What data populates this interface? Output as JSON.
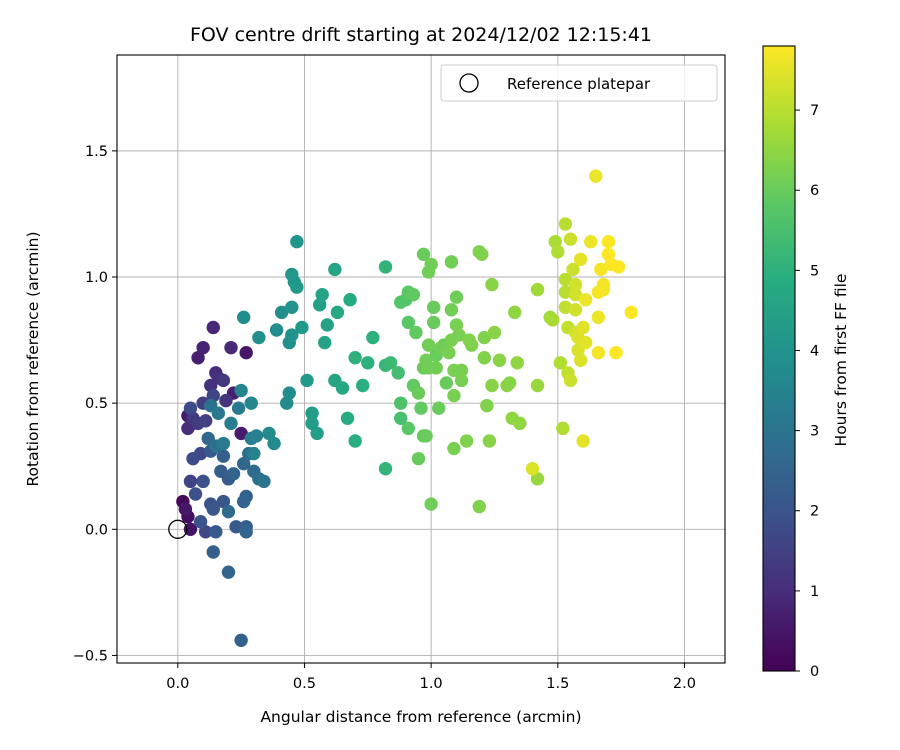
{
  "chart_data": {
    "type": "scatter",
    "title": "FOV centre drift starting at 2024/12/02 12:15:41",
    "xlabel": "Angular distance from reference (arcmin)",
    "ylabel": "Rotation from reference (arcmin)",
    "xlim": [
      -0.24,
      2.16
    ],
    "ylim": [
      -0.53,
      1.88
    ],
    "xticks": [
      0.0,
      0.5,
      1.0,
      1.5,
      2.0
    ],
    "xtick_labels": [
      "0.0",
      "0.5",
      "1.0",
      "1.5",
      "2.0"
    ],
    "yticks": [
      -0.5,
      0.0,
      0.5,
      1.0,
      1.5
    ],
    "ytick_labels": [
      "−0.5",
      "0.0",
      "0.5",
      "1.0",
      "1.5"
    ],
    "grid": true,
    "legend": {
      "position": "top-right",
      "entries": [
        "Reference platepar"
      ]
    },
    "reference_point": {
      "label": "Reference platepar",
      "x": 0.0,
      "y": 0.0,
      "marker": "open-circle"
    },
    "colorbar": {
      "label": "Hours from first FF file",
      "colormap": "viridis",
      "min": 0,
      "max": 7.8,
      "ticks": [
        0,
        1,
        2,
        3,
        4,
        5,
        6,
        7
      ],
      "tick_labels": [
        "0",
        "1",
        "2",
        "3",
        "4",
        "5",
        "6",
        "7"
      ]
    },
    "series": [
      {
        "points": [
          [
            0.02,
            0.11,
            0.2
          ],
          [
            0.04,
            0.05,
            0.3
          ],
          [
            0.05,
            0.0,
            0.4
          ],
          [
            0.03,
            0.08,
            0.5
          ],
          [
            0.06,
            0.42,
            0.5
          ],
          [
            0.04,
            0.45,
            0.6
          ],
          [
            0.08,
            0.68,
            0.7
          ],
          [
            0.1,
            0.72,
            0.8
          ],
          [
            0.14,
            0.8,
            0.9
          ],
          [
            0.25,
            0.38,
            0.6
          ],
          [
            0.27,
            0.7,
            0.5
          ],
          [
            0.21,
            0.72,
            0.9
          ],
          [
            0.15,
            0.62,
            1.0
          ],
          [
            0.16,
            0.6,
            1.1
          ],
          [
            0.13,
            0.57,
            1.1
          ],
          [
            0.19,
            0.51,
            1.2
          ],
          [
            0.22,
            0.54,
            0.7
          ],
          [
            0.04,
            0.4,
            1.0
          ],
          [
            0.06,
            0.44,
            1.3
          ],
          [
            0.08,
            0.42,
            1.4
          ],
          [
            0.11,
            0.43,
            1.5
          ],
          [
            0.1,
            0.5,
            1.5
          ],
          [
            0.14,
            0.53,
            1.6
          ],
          [
            0.18,
            0.59,
            1.3
          ],
          [
            0.05,
            0.48,
            1.8
          ],
          [
            0.09,
            0.3,
            1.7
          ],
          [
            0.06,
            0.28,
            1.8
          ],
          [
            0.05,
            0.19,
            1.6
          ],
          [
            0.1,
            0.19,
            1.9
          ],
          [
            0.07,
            0.14,
            1.9
          ],
          [
            0.13,
            0.1,
            2.0
          ],
          [
            0.09,
            0.03,
            2.0
          ],
          [
            0.14,
            0.08,
            2.1
          ],
          [
            0.18,
            0.11,
            2.1
          ],
          [
            0.11,
            -0.01,
            1.7
          ],
          [
            0.15,
            -0.01,
            2.2
          ],
          [
            0.14,
            -0.09,
            2.3
          ],
          [
            0.2,
            -0.17,
            2.5
          ],
          [
            0.25,
            -0.44,
            2.4
          ],
          [
            0.2,
            0.2,
            2.2
          ],
          [
            0.17,
            0.23,
            2.3
          ],
          [
            0.22,
            0.22,
            2.5
          ],
          [
            0.26,
            0.26,
            2.6
          ],
          [
            0.28,
            0.3,
            2.8
          ],
          [
            0.3,
            0.23,
            2.7
          ],
          [
            0.32,
            0.2,
            2.8
          ],
          [
            0.34,
            0.19,
            3.0
          ],
          [
            0.27,
            0.13,
            2.4
          ],
          [
            0.26,
            0.11,
            2.5
          ],
          [
            0.23,
            0.01,
            2.2
          ],
          [
            0.27,
            0.01,
            2.3
          ],
          [
            0.27,
            -0.01,
            2.5
          ],
          [
            0.2,
            0.07,
            2.7
          ],
          [
            0.18,
            0.29,
            2.4
          ],
          [
            0.13,
            0.31,
            2.2
          ],
          [
            0.12,
            0.36,
            2.6
          ],
          [
            0.15,
            0.33,
            2.9
          ],
          [
            0.18,
            0.34,
            3.2
          ],
          [
            0.13,
            0.49,
            2.9
          ],
          [
            0.16,
            0.46,
            3.1
          ],
          [
            0.21,
            0.42,
            3.3
          ],
          [
            0.29,
            0.36,
            3.3
          ],
          [
            0.31,
            0.37,
            3.4
          ],
          [
            0.3,
            0.3,
            3.4
          ],
          [
            0.24,
            0.48,
            3.2
          ],
          [
            0.25,
            0.55,
            3.5
          ],
          [
            0.29,
            0.5,
            3.6
          ],
          [
            0.36,
            0.38,
            3.7
          ],
          [
            0.38,
            0.34,
            3.7
          ],
          [
            0.26,
            0.84,
            3.8
          ],
          [
            0.32,
            0.76,
            3.9
          ],
          [
            0.39,
            0.79,
            3.8
          ],
          [
            0.41,
            0.86,
            3.9
          ],
          [
            0.44,
            0.74,
            3.9
          ],
          [
            0.45,
            0.77,
            4.0
          ],
          [
            0.43,
            0.5,
            3.7
          ],
          [
            0.44,
            0.54,
            3.8
          ],
          [
            0.45,
            0.88,
            4.0
          ],
          [
            0.45,
            1.01,
            4.1
          ],
          [
            0.46,
            0.98,
            4.1
          ],
          [
            0.47,
            0.96,
            4.2
          ],
          [
            0.47,
            1.14,
            4.1
          ],
          [
            0.49,
            0.8,
            4.2
          ],
          [
            0.51,
            0.59,
            4.2
          ],
          [
            0.53,
            0.46,
            4.3
          ],
          [
            0.53,
            0.42,
            4.3
          ],
          [
            0.55,
            0.38,
            4.4
          ],
          [
            0.56,
            0.89,
            4.4
          ],
          [
            0.57,
            0.93,
            4.5
          ],
          [
            0.58,
            0.74,
            4.5
          ],
          [
            0.59,
            0.81,
            4.5
          ],
          [
            0.62,
            1.03,
            4.6
          ],
          [
            0.62,
            0.59,
            4.6
          ],
          [
            0.63,
            0.86,
            4.7
          ],
          [
            0.65,
            0.56,
            4.7
          ],
          [
            0.67,
            0.44,
            4.8
          ],
          [
            0.68,
            0.91,
            4.8
          ],
          [
            0.7,
            0.35,
            4.9
          ],
          [
            0.73,
            0.57,
            4.9
          ],
          [
            0.7,
            0.68,
            5.0
          ],
          [
            0.75,
            0.66,
            5.0
          ],
          [
            0.77,
            0.76,
            5.0
          ],
          [
            0.82,
            0.24,
            5.1
          ],
          [
            0.82,
            1.04,
            5.1
          ],
          [
            0.82,
            0.65,
            5.2
          ],
          [
            0.84,
            0.66,
            5.3
          ],
          [
            0.87,
            0.62,
            5.4
          ],
          [
            0.88,
            0.44,
            5.5
          ],
          [
            0.88,
            0.5,
            5.6
          ],
          [
            0.88,
            0.9,
            5.7
          ],
          [
            0.9,
            0.91,
            5.7
          ],
          [
            0.91,
            0.94,
            5.8
          ],
          [
            0.91,
            0.82,
            5.8
          ],
          [
            0.93,
            0.93,
            5.9
          ],
          [
            0.94,
            0.78,
            5.9
          ],
          [
            0.91,
            0.4,
            5.8
          ],
          [
            0.93,
            0.57,
            5.9
          ],
          [
            0.95,
            0.54,
            6.0
          ],
          [
            0.95,
            0.28,
            6.0
          ],
          [
            0.96,
            0.48,
            5.9
          ],
          [
            0.97,
            0.37,
            6.0
          ],
          [
            0.98,
            0.37,
            6.0
          ],
          [
            0.97,
            0.64,
            6.0
          ],
          [
            0.98,
            0.67,
            6.1
          ],
          [
            0.99,
            0.64,
            6.1
          ],
          [
            0.99,
            0.73,
            6.1
          ],
          [
            0.97,
            1.09,
            6.0
          ],
          [
            0.99,
            1.02,
            6.1
          ],
          [
            1.0,
            1.05,
            6.1
          ],
          [
            1.0,
            0.1,
            6.1
          ],
          [
            1.01,
            0.88,
            6.0
          ],
          [
            1.01,
            0.82,
            6.0
          ],
          [
            1.02,
            0.69,
            6.0
          ],
          [
            1.02,
            0.64,
            6.1
          ],
          [
            1.03,
            0.48,
            6.0
          ],
          [
            1.04,
            0.72,
            6.1
          ],
          [
            1.05,
            0.73,
            6.1
          ],
          [
            1.06,
            0.58,
            6.0
          ],
          [
            1.07,
            0.7,
            6.2
          ],
          [
            1.08,
            1.06,
            6.1
          ],
          [
            1.08,
            0.87,
            6.1
          ],
          [
            1.08,
            0.75,
            6.2
          ],
          [
            1.09,
            0.63,
            6.2
          ],
          [
            1.09,
            0.53,
            6.2
          ],
          [
            1.09,
            0.32,
            6.2
          ],
          [
            1.1,
            0.92,
            6.1
          ],
          [
            1.1,
            0.81,
            6.2
          ],
          [
            1.11,
            0.77,
            6.2
          ],
          [
            1.12,
            0.63,
            6.2
          ],
          [
            1.12,
            0.59,
            6.2
          ],
          [
            1.14,
            0.35,
            6.3
          ],
          [
            1.15,
            0.75,
            6.3
          ],
          [
            1.16,
            0.73,
            6.3
          ],
          [
            1.19,
            1.1,
            6.3
          ],
          [
            1.19,
            0.09,
            6.3
          ],
          [
            1.2,
            1.09,
            6.3
          ],
          [
            1.21,
            0.76,
            6.3
          ],
          [
            1.21,
            0.68,
            6.3
          ],
          [
            1.22,
            0.49,
            6.3
          ],
          [
            1.23,
            0.35,
            6.4
          ],
          [
            1.24,
            0.97,
            6.4
          ],
          [
            1.24,
            0.57,
            6.4
          ],
          [
            1.25,
            0.78,
            6.4
          ],
          [
            1.27,
            0.67,
            6.4
          ],
          [
            1.3,
            0.57,
            6.4
          ],
          [
            1.31,
            0.58,
            6.4
          ],
          [
            1.32,
            0.44,
            6.5
          ],
          [
            1.33,
            0.86,
            6.5
          ],
          [
            1.34,
            0.66,
            6.5
          ],
          [
            1.35,
            0.42,
            6.5
          ],
          [
            1.4,
            0.24,
            7.4
          ],
          [
            1.42,
            0.2,
            6.6
          ],
          [
            1.42,
            0.57,
            6.6
          ],
          [
            1.42,
            0.95,
            6.7
          ],
          [
            1.47,
            0.84,
            6.7
          ],
          [
            1.48,
            0.83,
            6.8
          ],
          [
            1.49,
            1.14,
            6.8
          ],
          [
            1.5,
            1.1,
            6.9
          ],
          [
            1.51,
            0.66,
            6.9
          ],
          [
            1.52,
            0.4,
            6.9
          ],
          [
            1.53,
            1.21,
            7.0
          ],
          [
            1.53,
            0.99,
            7.0
          ],
          [
            1.53,
            0.94,
            7.0
          ],
          [
            1.53,
            0.88,
            7.1
          ],
          [
            1.54,
            0.8,
            7.1
          ],
          [
            1.54,
            0.62,
            7.1
          ],
          [
            1.55,
            0.59,
            7.2
          ],
          [
            1.55,
            1.15,
            7.2
          ],
          [
            1.56,
            1.03,
            7.2
          ],
          [
            1.57,
            0.97,
            7.3
          ],
          [
            1.57,
            0.93,
            7.3
          ],
          [
            1.57,
            0.87,
            7.3
          ],
          [
            1.58,
            0.76,
            7.4
          ],
          [
            1.58,
            0.71,
            7.4
          ],
          [
            1.59,
            0.67,
            7.4
          ],
          [
            1.59,
            1.07,
            7.5
          ],
          [
            1.6,
            0.8,
            7.5
          ],
          [
            1.6,
            0.35,
            7.5
          ],
          [
            1.61,
            0.91,
            7.6
          ],
          [
            1.63,
            1.14,
            7.6
          ],
          [
            1.65,
            1.4,
            7.6
          ],
          [
            1.66,
            0.84,
            7.6
          ],
          [
            1.66,
            0.7,
            7.7
          ],
          [
            1.67,
            1.03,
            7.7
          ],
          [
            1.68,
            0.97,
            7.7
          ],
          [
            1.68,
            0.95,
            7.7
          ],
          [
            1.7,
            1.14,
            7.8
          ],
          [
            1.7,
            1.09,
            7.8
          ],
          [
            1.71,
            1.05,
            7.8
          ],
          [
            1.73,
            0.7,
            7.8
          ],
          [
            1.74,
            1.04,
            7.8
          ],
          [
            1.79,
            0.86,
            7.8
          ],
          [
            1.66,
            0.94,
            7.7
          ],
          [
            1.61,
            0.74,
            7.5
          ],
          [
            1.57,
            0.78,
            7.3
          ]
        ]
      }
    ]
  }
}
